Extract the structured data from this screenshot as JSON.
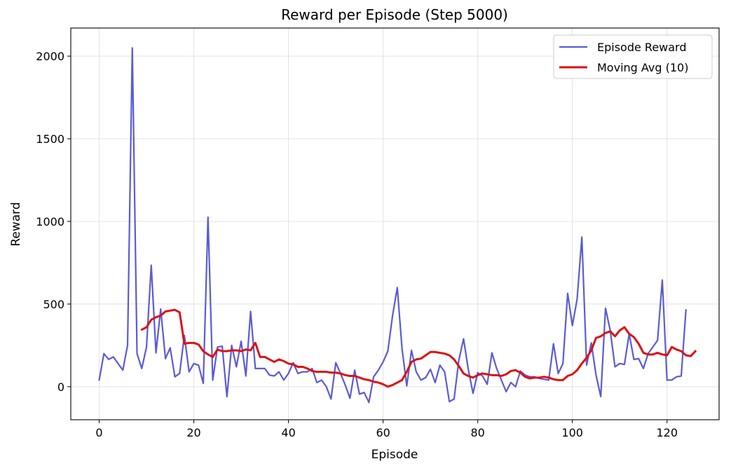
{
  "chart_data": {
    "type": "line",
    "title": "Reward per Episode (Step 5000)",
    "xlabel": "Episode",
    "ylabel": "Reward",
    "xlim": [
      -6,
      131
    ],
    "ylim": [
      -200,
      2170
    ],
    "xticks": [
      0,
      20,
      40,
      60,
      80,
      100,
      120
    ],
    "yticks": [
      0,
      500,
      1000,
      1500,
      2000
    ],
    "grid": true,
    "legend_position": "top-right",
    "series": [
      {
        "name": "Episode Reward",
        "color": "#5b5bd6",
        "start_x": 0,
        "values": [
          40,
          200,
          165,
          180,
          140,
          100,
          250,
          2050,
          200,
          110,
          240,
          735,
          205,
          470,
          170,
          235,
          60,
          80,
          310,
          90,
          140,
          130,
          20,
          1025,
          40,
          240,
          245,
          -60,
          250,
          120,
          275,
          65,
          455,
          110,
          110,
          110,
          70,
          65,
          90,
          40,
          80,
          145,
          80,
          90,
          90,
          110,
          25,
          40,
          0,
          -75,
          145,
          80,
          10,
          -70,
          100,
          -45,
          -35,
          -95,
          60,
          100,
          150,
          215,
          430,
          600,
          230,
          5,
          220,
          90,
          40,
          55,
          105,
          25,
          130,
          90,
          -90,
          -75,
          160,
          290,
          105,
          -40,
          85,
          65,
          15,
          205,
          110,
          40,
          -30,
          25,
          0,
          95,
          70,
          60,
          60,
          50,
          45,
          40,
          260,
          80,
          140,
          565,
          370,
          530,
          905,
          130,
          265,
          70,
          -60,
          475,
          340,
          120,
          140,
          135,
          320,
          165,
          170,
          110,
          200,
          240,
          280,
          645,
          40,
          40,
          60,
          65,
          465
        ]
      },
      {
        "name": "Moving Avg (10)",
        "color": "#dd1111",
        "start_x": 9,
        "values": [
          345,
          360,
          405,
          420,
          430,
          455,
          460,
          465,
          450,
          260,
          265,
          265,
          255,
          215,
          195,
          180,
          225,
          215,
          215,
          220,
          220,
          215,
          225,
          220,
          265,
          180,
          180,
          165,
          150,
          165,
          155,
          140,
          135,
          120,
          120,
          110,
          95,
          90,
          90,
          90,
          85,
          85,
          80,
          70,
          65,
          65,
          55,
          45,
          40,
          30,
          25,
          15,
          0,
          10,
          25,
          40,
          90,
          150,
          165,
          170,
          190,
          210,
          210,
          205,
          200,
          190,
          165,
          125,
          80,
          65,
          55,
          70,
          80,
          75,
          70,
          70,
          65,
          75,
          95,
          100,
          85,
          60,
          50,
          55,
          55,
          60,
          55,
          45,
          40,
          40,
          65,
          75,
          100,
          140,
          175,
          220,
          295,
          305,
          325,
          335,
          305,
          340,
          360,
          320,
          300,
          260,
          205,
          195,
          195,
          205,
          195,
          190,
          240,
          225,
          215,
          190,
          185,
          215
        ]
      }
    ]
  }
}
